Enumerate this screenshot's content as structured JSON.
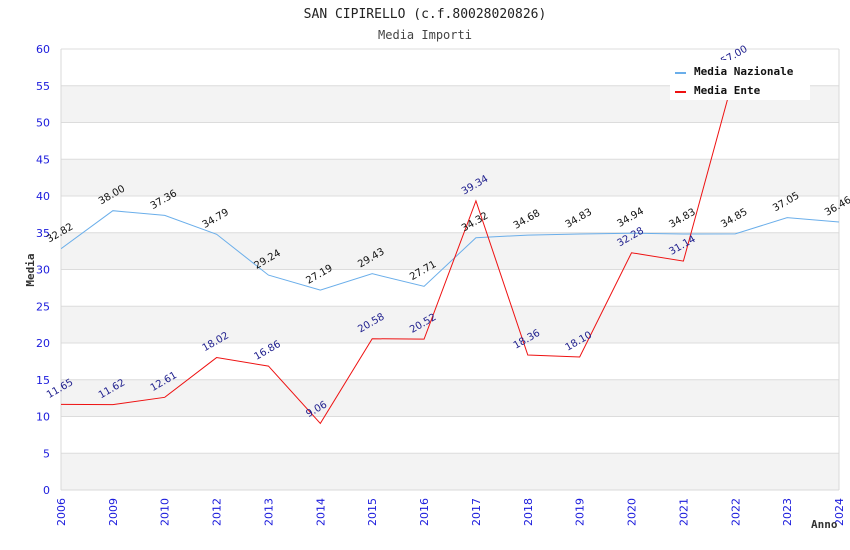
{
  "chart_data": {
    "type": "line",
    "title": "SAN CIPIRELLO (c.f.80028020826)",
    "subtitle": "Media Importi",
    "xlabel": "Anno",
    "ylabel": "Media",
    "ylim": [
      0,
      60
    ],
    "yticks": [
      "0",
      "5",
      "10",
      "15",
      "20",
      "25",
      "30",
      "35",
      "40",
      "45",
      "50",
      "55",
      "60"
    ],
    "categories": [
      "2006",
      "2009",
      "2010",
      "2012",
      "2013",
      "2014",
      "2015",
      "2016",
      "2017",
      "2018",
      "2019",
      "2020",
      "2021",
      "2022",
      "2023",
      "2024"
    ],
    "grid": true,
    "legend_position": "top-right",
    "series": [
      {
        "name": "Media Nazionale",
        "color": "#6aaeea",
        "values": [
          32.82,
          38.0,
          37.36,
          34.79,
          29.24,
          27.19,
          29.43,
          27.71,
          34.32,
          34.68,
          34.83,
          34.94,
          34.83,
          34.85,
          37.05,
          36.46
        ],
        "labels": [
          "32.82",
          "38.00",
          "37.36",
          "34.79",
          "29.24",
          "27.19",
          "29.43",
          "27.71",
          "34.32",
          "34.68",
          "34.83",
          "34.94",
          "34.83",
          "34.85",
          "37.05",
          "36.46"
        ]
      },
      {
        "name": "Media Ente",
        "color": "#ee1111",
        "values": [
          11.65,
          11.62,
          12.61,
          18.02,
          16.86,
          9.06,
          20.58,
          20.52,
          39.34,
          18.36,
          18.1,
          32.28,
          31.14,
          57.0,
          null,
          null
        ],
        "labels": [
          "11.65",
          "11.62",
          "12.61",
          "18.02",
          "16.86",
          "9.06",
          "20.58",
          "20.52",
          "39.34",
          "18.36",
          "18.10",
          "32.28",
          "31.14",
          "57.00",
          null,
          null
        ]
      }
    ]
  }
}
